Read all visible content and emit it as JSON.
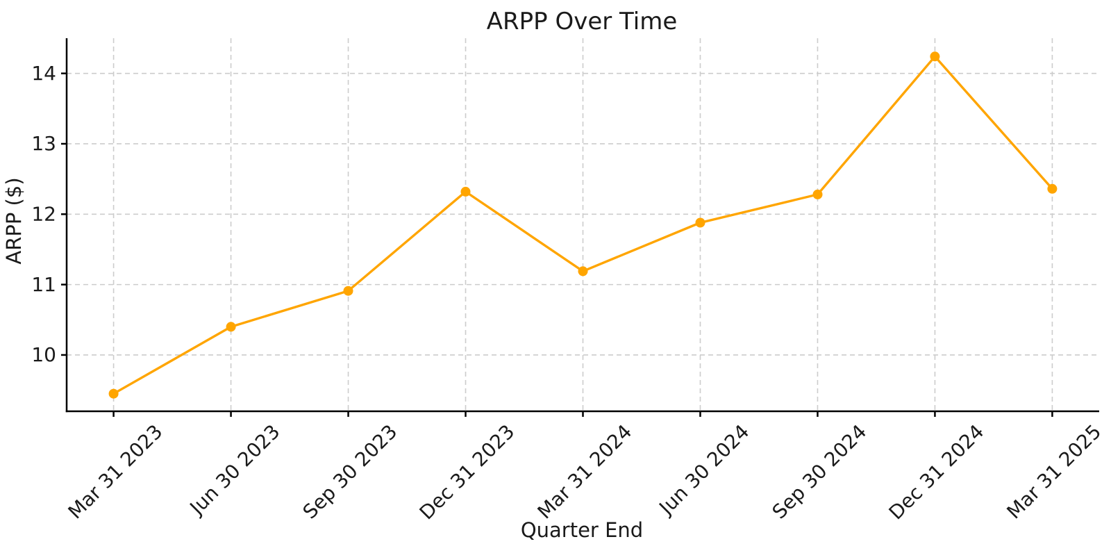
{
  "chart_data": {
    "type": "line",
    "title": "ARPP Over Time",
    "xlabel": "Quarter End",
    "ylabel": "ARPP ($)",
    "categories": [
      "Mar 31 2023",
      "Jun 30 2023",
      "Sep 30 2023",
      "Dec 31 2023",
      "Mar 31 2024",
      "Jun 30 2024",
      "Sep 30 2024",
      "Dec 31 2024",
      "Mar 31 2025"
    ],
    "values": [
      9.45,
      10.4,
      10.91,
      12.32,
      11.19,
      11.88,
      12.28,
      14.24,
      12.36
    ],
    "yticks": [
      10,
      11,
      12,
      13,
      14
    ],
    "ylim": [
      9.2,
      14.5
    ],
    "x_margin_units": 0.4,
    "grid": true,
    "legend_position": "none",
    "x_tick_rotation_deg": 45,
    "line_color": "#FFA500",
    "marker": "circle",
    "marker_color": "#FFA500",
    "grid_color": "#cccccc",
    "axis_color": "#000000",
    "text_color": "#1a1a1a",
    "background_color": "#ffffff"
  }
}
